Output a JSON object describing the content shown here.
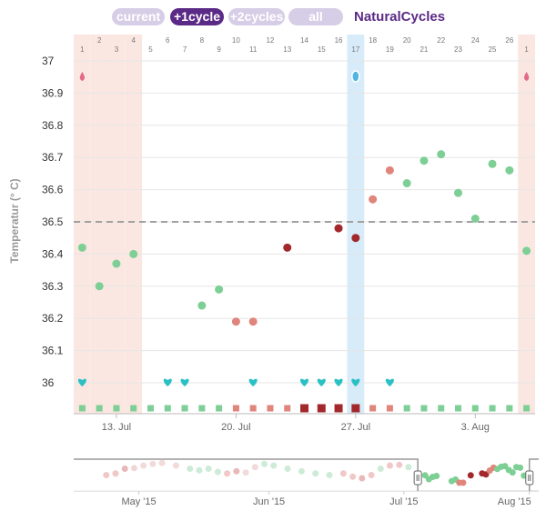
{
  "tabs": [
    {
      "label": "current",
      "active": false
    },
    {
      "label": "+1cycle",
      "active": true
    },
    {
      "label": "+2cycles",
      "active": false
    },
    {
      "label": "all",
      "active": false
    }
  ],
  "brand": "NaturalCycles",
  "colors": {
    "green": "#7dcf95",
    "pink": "#e0857c",
    "darkred": "#a3282b",
    "teal": "#2bc0c4",
    "period_band": "#fbe7e1",
    "highlight_band": "#d7ebf9",
    "coverline": "#a0a0a0",
    "brand": "#5b2a86"
  },
  "chart_data": {
    "type": "scatter",
    "ylabel": "Temperatur (° C)",
    "ylim": [
      35.9,
      37.05
    ],
    "yticks": [
      "36",
      "36.1",
      "36.2",
      "36.3",
      "36.4",
      "36.5",
      "36.6",
      "36.7",
      "36.8",
      "36.9",
      "37"
    ],
    "coverline": 36.5,
    "days": [
      "1",
      "2",
      "3",
      "4",
      "5",
      "6",
      "7",
      "8",
      "9",
      "10",
      "11",
      "12",
      "13",
      "14",
      "15",
      "16",
      "17",
      "18",
      "19",
      "20",
      "21",
      "22",
      "23",
      "24",
      "25",
      "26",
      "1"
    ],
    "date_labels": [
      {
        "day_index": 2,
        "label": "13. Jul"
      },
      {
        "day_index": 9,
        "label": "20. Jul"
      },
      {
        "day_index": 16,
        "label": "27. Jul"
      },
      {
        "day_index": 23,
        "label": "3. Aug"
      }
    ],
    "period_days": [
      0,
      1,
      2,
      3,
      26
    ],
    "highlight_day": 16,
    "period_drop_days": [
      0,
      26
    ],
    "ovulation_test_day": 16,
    "temperatures": [
      {
        "day": 0,
        "value": 36.42,
        "status": "green"
      },
      {
        "day": 1,
        "value": 36.3,
        "status": "green"
      },
      {
        "day": 2,
        "value": 36.37,
        "status": "green"
      },
      {
        "day": 3,
        "value": 36.4,
        "status": "green"
      },
      {
        "day": 7,
        "value": 36.24,
        "status": "green"
      },
      {
        "day": 8,
        "value": 36.29,
        "status": "green"
      },
      {
        "day": 9,
        "value": 36.19,
        "status": "pink"
      },
      {
        "day": 10,
        "value": 36.19,
        "status": "pink"
      },
      {
        "day": 12,
        "value": 36.42,
        "status": "darkred"
      },
      {
        "day": 15,
        "value": 36.48,
        "status": "darkred"
      },
      {
        "day": 16,
        "value": 36.45,
        "status": "darkred"
      },
      {
        "day": 17,
        "value": 36.57,
        "status": "pink"
      },
      {
        "day": 18,
        "value": 36.66,
        "status": "pink"
      },
      {
        "day": 19,
        "value": 36.62,
        "status": "green"
      },
      {
        "day": 20,
        "value": 36.69,
        "status": "green"
      },
      {
        "day": 21,
        "value": 36.71,
        "status": "green"
      },
      {
        "day": 22,
        "value": 36.59,
        "status": "green"
      },
      {
        "day": 23,
        "value": 36.51,
        "status": "green"
      },
      {
        "day": 24,
        "value": 36.68,
        "status": "green"
      },
      {
        "day": 25,
        "value": 36.66,
        "status": "green"
      },
      {
        "day": 26,
        "value": 36.41,
        "status": "green"
      }
    ],
    "heart_days": [
      0,
      5,
      6,
      10,
      13,
      14,
      15,
      16,
      18
    ],
    "day_status": [
      "green",
      "green",
      "green",
      "green",
      "green",
      "green",
      "green",
      "green",
      "green",
      "pink",
      "pink",
      "pink",
      "pink",
      "darkred",
      "darkred",
      "darkred",
      "darkred",
      "pink",
      "pink",
      "green",
      "green",
      "green",
      "green",
      "green",
      "green",
      "green",
      "green"
    ],
    "day_status_large": [
      13,
      14,
      15,
      16
    ],
    "navigator": {
      "labels": [
        "May '15",
        "Jun '15",
        "Jul '15",
        "Aug '15"
      ],
      "selected_from_fraction": 0.74,
      "selected_to_fraction": 0.98
    }
  }
}
